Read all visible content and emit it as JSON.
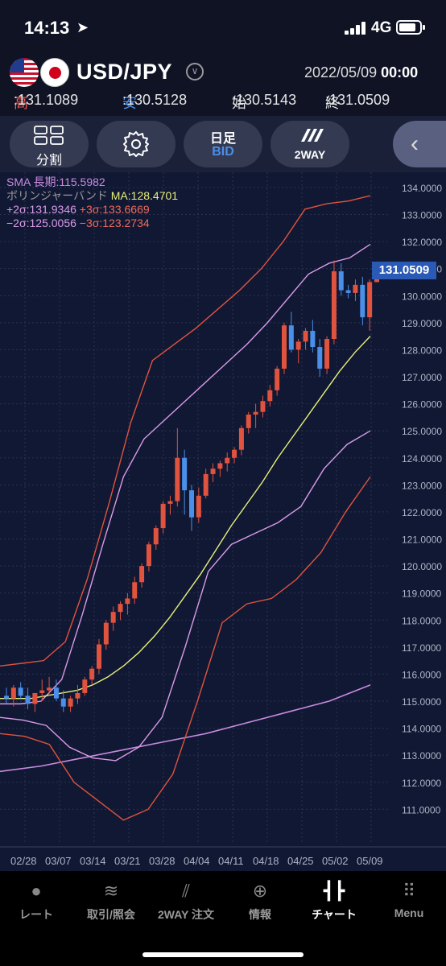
{
  "status": {
    "time": "14:13",
    "network": "4G"
  },
  "header": {
    "pair": "USD/JPY",
    "date": "2022/05/09",
    "time": "00:00",
    "high_label": "高",
    "high": ":131.1089",
    "low_label": "安",
    "low": ":130.5128",
    "open_label": "始",
    "open": ":130.5143",
    "close_label": "終",
    "close": ":131.0509"
  },
  "toolbar": {
    "split_label": "分割",
    "period_label": "日足",
    "price_type": "BID",
    "way_label": "2WAY"
  },
  "legend": {
    "sma": "SMA 長期:115.5982",
    "bb_name": "ボリンジャーバンド",
    "bb_ma": "MA:128.4701",
    "p2": "+2σ:131.9346",
    "p3": "+3σ:133.6669",
    "m2": "−2σ:125.0056",
    "m3": "−3σ:123.2734"
  },
  "current_price": "131.0509",
  "colors": {
    "up": "#e0533f",
    "down": "#4a8fe8",
    "ma": "#e8f07a",
    "sigma2": "#d99be8",
    "sigma3": "#e0533f",
    "sma": "#c98be0"
  },
  "chart_data": {
    "type": "candlestick",
    "y_ticks": [
      "134.0000",
      "133.0000",
      "132.0000",
      "131.0000",
      "130.0000",
      "129.0000",
      "128.0000",
      "127.0000",
      "126.0000",
      "125.0000",
      "124.0000",
      "123.0000",
      "122.0000",
      "121.0000",
      "120.0000",
      "119.0000",
      "118.0000",
      "117.0000",
      "116.0000",
      "115.0000",
      "114.0000",
      "113.0000",
      "112.0000",
      "111.0000"
    ],
    "x_ticks": [
      "02/28",
      "03/07",
      "03/14",
      "03/21",
      "03/28",
      "04/04",
      "04/11",
      "04/18",
      "04/25",
      "05/02",
      "05/09"
    ],
    "ylim": [
      110.4,
      134.4
    ],
    "candles": [
      [
        115.2,
        115.5,
        114.9,
        115.1
      ],
      [
        115.1,
        115.6,
        114.8,
        115.5
      ],
      [
        115.5,
        115.7,
        115.1,
        115.2
      ],
      [
        115.2,
        115.5,
        114.7,
        114.9
      ],
      [
        114.9,
        115.3,
        114.6,
        115.3
      ],
      [
        115.3,
        115.8,
        115.0,
        115.4
      ],
      [
        115.4,
        115.9,
        115.2,
        115.5
      ],
      [
        115.5,
        115.8,
        115.0,
        115.1
      ],
      [
        115.1,
        115.4,
        114.6,
        114.8
      ],
      [
        114.8,
        115.2,
        114.6,
        115.1
      ],
      [
        115.1,
        115.6,
        114.9,
        115.3
      ],
      [
        115.3,
        115.9,
        115.2,
        115.8
      ],
      [
        115.8,
        116.3,
        115.6,
        116.2
      ],
      [
        116.2,
        117.3,
        116.0,
        117.1
      ],
      [
        117.1,
        118.0,
        116.9,
        117.9
      ],
      [
        117.9,
        118.5,
        117.6,
        118.3
      ],
      [
        118.3,
        118.7,
        118.0,
        118.6
      ],
      [
        118.6,
        119.0,
        118.2,
        118.8
      ],
      [
        118.8,
        119.6,
        118.6,
        119.4
      ],
      [
        119.4,
        120.1,
        119.2,
        120.0
      ],
      [
        120.0,
        120.9,
        119.8,
        120.8
      ],
      [
        120.8,
        121.5,
        120.6,
        121.4
      ],
      [
        121.4,
        122.4,
        121.2,
        122.3
      ],
      [
        122.3,
        122.6,
        121.9,
        122.4
      ],
      [
        122.4,
        125.1,
        122.2,
        124.0
      ],
      [
        124.0,
        124.3,
        121.9,
        122.8
      ],
      [
        122.8,
        123.0,
        121.3,
        121.8
      ],
      [
        121.8,
        122.9,
        121.6,
        122.6
      ],
      [
        122.6,
        123.6,
        122.5,
        123.4
      ],
      [
        123.4,
        123.8,
        123.1,
        123.6
      ],
      [
        123.6,
        123.9,
        123.3,
        123.8
      ],
      [
        123.8,
        124.2,
        123.5,
        124.0
      ],
      [
        124.0,
        124.4,
        123.8,
        124.3
      ],
      [
        124.3,
        125.2,
        124.1,
        125.1
      ],
      [
        125.1,
        125.7,
        124.9,
        125.6
      ],
      [
        125.6,
        126.0,
        125.1,
        125.7
      ],
      [
        125.7,
        126.3,
        125.5,
        126.1
      ],
      [
        126.1,
        126.7,
        125.9,
        126.5
      ],
      [
        126.5,
        127.4,
        126.3,
        127.3
      ],
      [
        127.3,
        129.0,
        127.1,
        128.9
      ],
      [
        128.9,
        129.4,
        127.9,
        128.0
      ],
      [
        128.0,
        128.4,
        127.5,
        128.3
      ],
      [
        128.3,
        128.8,
        128.0,
        128.7
      ],
      [
        128.7,
        129.1,
        127.9,
        128.1
      ],
      [
        128.1,
        128.4,
        127.0,
        127.3
      ],
      [
        127.3,
        128.5,
        127.1,
        128.4
      ],
      [
        128.4,
        131.3,
        128.2,
        130.9
      ],
      [
        130.9,
        131.2,
        130.0,
        130.2
      ],
      [
        130.2,
        130.4,
        129.9,
        130.1
      ],
      [
        130.1,
        130.6,
        129.8,
        130.4
      ],
      [
        130.4,
        130.7,
        128.9,
        129.2
      ],
      [
        129.2,
        130.6,
        128.7,
        130.5
      ],
      [
        130.5,
        131.1,
        130.5,
        131.05
      ]
    ],
    "ma": [
      115.1,
      115.1,
      115.1,
      115.2,
      115.3,
      115.4,
      115.6,
      115.9,
      116.3,
      116.8,
      117.4,
      118.1,
      118.9,
      119.7,
      120.6,
      121.5,
      122.3,
      123.1,
      124.0,
      124.8,
      125.6,
      126.4,
      127.2,
      127.9,
      128.5
    ],
    "bb_p2": [
      114.9,
      114.9,
      115.0,
      115.8,
      118.2,
      120.8,
      123.3,
      124.7,
      125.4,
      126.1,
      126.8,
      127.5,
      128.2,
      129.0,
      129.9,
      130.8,
      131.2,
      131.4,
      131.9
    ],
    "bb_p3": [
      116.3,
      116.4,
      116.5,
      117.2,
      119.5,
      122.3,
      125.3,
      127.6,
      128.2,
      128.8,
      129.5,
      130.2,
      131.0,
      132.0,
      133.2,
      133.4,
      133.5,
      133.7
    ],
    "bb_m2": [
      114.4,
      114.3,
      114.1,
      113.3,
      112.9,
      112.8,
      113.3,
      114.4,
      117.0,
      119.8,
      120.8,
      121.2,
      121.6,
      122.2,
      123.6,
      124.5,
      125.0
    ],
    "bb_m3": [
      113.8,
      113.7,
      113.4,
      112.0,
      111.3,
      110.6,
      111.0,
      112.3,
      115.0,
      117.9,
      118.6,
      118.8,
      119.5,
      120.5,
      122.0,
      123.3
    ],
    "sma_long": [
      112.4,
      112.6,
      112.9,
      113.2,
      113.5,
      113.8,
      114.2,
      114.6,
      115.0,
      115.6
    ]
  },
  "bottom_nav": {
    "rate": "レート",
    "trade": "取引/照会",
    "two_way": "2WAY 注文",
    "info": "情報",
    "chart": "チャート",
    "menu": "Menu"
  }
}
